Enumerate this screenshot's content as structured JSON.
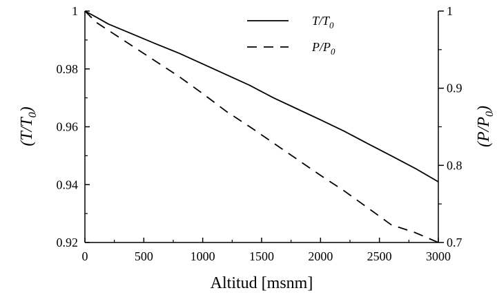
{
  "chart_data": {
    "type": "line",
    "xlabel": "Altitud [msnm]",
    "ylabel_left": "(T/T",
    "ylabel_left_sub": "0",
    "ylabel_left_close": ")",
    "ylabel_right": "(P/P",
    "ylabel_right_sub": "0",
    "ylabel_right_close": ")",
    "xlim": [
      0,
      3000
    ],
    "ylim_left": [
      0.92,
      1.0
    ],
    "ylim_right": [
      0.7,
      1.0
    ],
    "x_ticks": [
      "0",
      "500",
      "1000",
      "1500",
      "2000",
      "2500",
      "3000"
    ],
    "y_left_ticks": [
      "0.92",
      "0.94",
      "0.96",
      "0.98",
      "1"
    ],
    "y_right_ticks": [
      "0.7",
      "0.8",
      "0.9",
      "1"
    ],
    "grid": false,
    "legend_position": "top-right",
    "series": [
      {
        "name": "T/T",
        "name_sub": "0",
        "axis": "left",
        "style": "solid",
        "x": [
          0,
          100,
          200,
          400,
          600,
          800,
          1000,
          1200,
          1400,
          1600,
          1800,
          2000,
          2200,
          2400,
          2600,
          2800,
          3000
        ],
        "y": [
          1.0,
          0.9978,
          0.9955,
          0.9921,
          0.9887,
          0.9854,
          0.9817,
          0.978,
          0.9743,
          0.97,
          0.9662,
          0.9624,
          0.9585,
          0.9542,
          0.95,
          0.9457,
          0.941
        ]
      },
      {
        "name": "P/P",
        "name_sub": "0",
        "axis": "right",
        "style": "dashed",
        "x": [
          0,
          100,
          200,
          400,
          600,
          800,
          1000,
          1200,
          1400,
          1600,
          1800,
          2000,
          2200,
          2400,
          2600,
          2800,
          3000
        ],
        "y": [
          1.0,
          0.985,
          0.975,
          0.955,
          0.935,
          0.915,
          0.893,
          0.87,
          0.85,
          0.829,
          0.808,
          0.787,
          0.767,
          0.745,
          0.723,
          0.713,
          0.7
        ]
      }
    ]
  }
}
